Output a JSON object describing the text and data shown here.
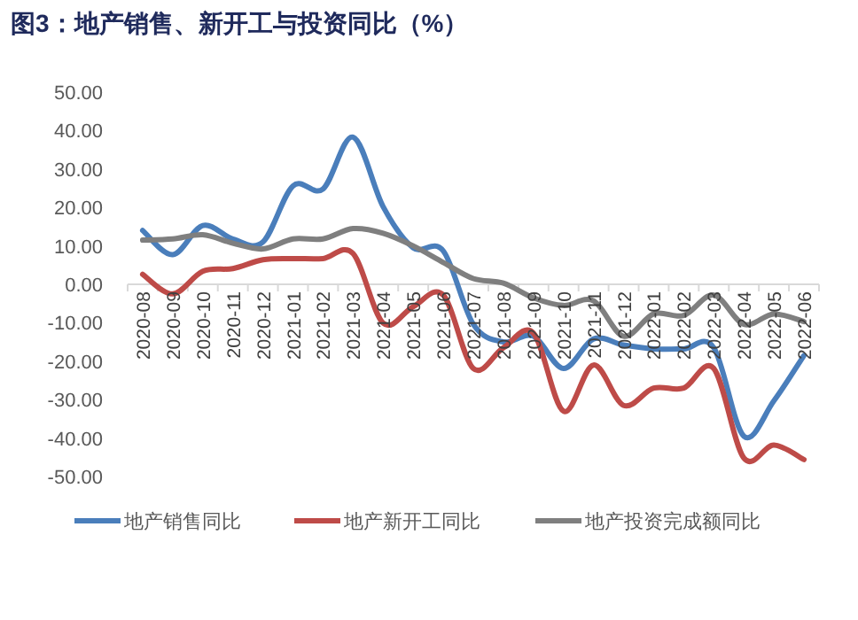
{
  "chart_data": {
    "type": "line",
    "title": "图3：地产销售、新开工与投资同比（%）",
    "categories": [
      "2020-08",
      "2020-09",
      "2020-10",
      "2020-11",
      "2020-12",
      "2021-01",
      "2021-02",
      "2021-03",
      "2021-04",
      "2021-05",
      "2021-06",
      "2021-07",
      "2021-08",
      "2021-09",
      "2021-10",
      "2021-11",
      "2021-12",
      "2022-01",
      "2022-02",
      "2022-03",
      "2022-04",
      "2022-05",
      "2022-06"
    ],
    "series": [
      {
        "name": "地产销售同比",
        "color": "#4a7ebb",
        "values": [
          14,
          7.7,
          15.3,
          11.8,
          11,
          25.6,
          24.8,
          38.3,
          20.2,
          9.5,
          8.7,
          -10.4,
          -15,
          -13.5,
          -21.9,
          -14.2,
          -15.8,
          -16.8,
          -16.8,
          -16.5,
          -39.5,
          -30.3,
          -18.5
        ]
      },
      {
        "name": "地产新开工同比",
        "color": "#be4b48",
        "values": [
          2.6,
          -2.5,
          3.4,
          4.1,
          6.4,
          6.7,
          6.7,
          8,
          -10.1,
          -5.8,
          -2.8,
          -21.9,
          -16.5,
          -12.7,
          -33,
          -21,
          -31.5,
          -27,
          -27,
          -21.9,
          -45.2,
          -41.8,
          -45.6
        ]
      },
      {
        "name": "地产投资完成额同比",
        "color": "#7f7f7f",
        "values": [
          11.5,
          11.8,
          12.9,
          10.7,
          9.2,
          11.8,
          11.8,
          14.5,
          13.3,
          10,
          5.7,
          1.5,
          0.3,
          -3.5,
          -5.5,
          -4.3,
          -13.5,
          -7.7,
          -8.1,
          -2.8,
          -10.4,
          -7.7,
          -9.7
        ]
      }
    ],
    "ylim": [
      -50,
      50
    ],
    "yticks": [
      {
        "value": 50,
        "label": "50.00"
      },
      {
        "value": 40,
        "label": "40.00"
      },
      {
        "value": 30,
        "label": "30.00"
      },
      {
        "value": 20,
        "label": "20.00"
      },
      {
        "value": 10,
        "label": "10.00"
      },
      {
        "value": 0,
        "label": "0.00"
      },
      {
        "value": -10,
        "label": "-10.00"
      },
      {
        "value": -20,
        "label": "-20.00"
      },
      {
        "value": -30,
        "label": "-30.00"
      },
      {
        "value": -40,
        "label": "-40.00"
      },
      {
        "value": -50,
        "label": "-50.00"
      }
    ],
    "grid": false,
    "legend": "bottom",
    "marker": "none",
    "line_style": "solid"
  }
}
